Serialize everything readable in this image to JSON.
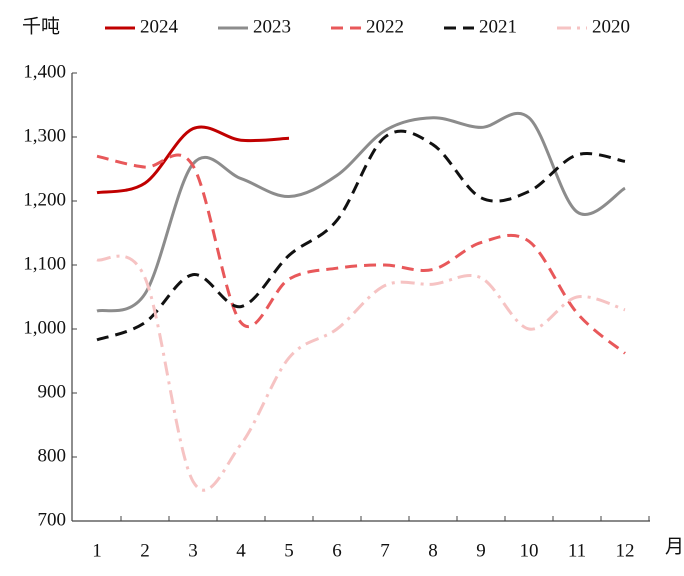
{
  "chart_data": {
    "type": "line",
    "unit_label": "千吨",
    "x_label": "月",
    "categories": [
      "1",
      "2",
      "3",
      "4",
      "5",
      "6",
      "7",
      "8",
      "9",
      "10",
      "11",
      "12"
    ],
    "ylim": [
      700,
      1400
    ],
    "yticks": [
      {
        "value": 700,
        "label": "700"
      },
      {
        "value": 800,
        "label": "800"
      },
      {
        "value": 900,
        "label": "900"
      },
      {
        "value": 1000,
        "label": "1,000"
      },
      {
        "value": 1100,
        "label": "1,100"
      },
      {
        "value": 1200,
        "label": "1,200"
      },
      {
        "value": 1300,
        "label": "1,300"
      },
      {
        "value": 1400,
        "label": "1,400"
      }
    ],
    "grid": false,
    "legend": "top",
    "series": [
      {
        "name": "2024",
        "color": "#c00000",
        "dash": "solid",
        "values": [
          1213,
          1228,
          1313,
          1295,
          1298,
          null,
          null,
          null,
          null,
          null,
          null,
          null
        ]
      },
      {
        "name": "2023",
        "color": "#8c8c8c",
        "dash": "solid",
        "values": [
          1028,
          1055,
          1258,
          1235,
          1207,
          1240,
          1310,
          1330,
          1315,
          1330,
          1183,
          1220
        ]
      },
      {
        "name": "2022",
        "color": "#e8585a",
        "dash": "dashed",
        "values": [
          1270,
          1253,
          1255,
          1010,
          1078,
          1095,
          1100,
          1093,
          1135,
          1137,
          1025,
          962
        ]
      },
      {
        "name": "2021",
        "color": "#111111",
        "dash": "dashed",
        "values": [
          983,
          1010,
          1085,
          1035,
          1115,
          1170,
          1300,
          1288,
          1205,
          1215,
          1272,
          1262
        ]
      },
      {
        "name": "2020",
        "color": "#f6c3c3",
        "dash": "dashdot",
        "values": [
          1108,
          1080,
          762,
          820,
          955,
          1000,
          1068,
          1070,
          1080,
          1000,
          1050,
          1030
        ]
      }
    ]
  }
}
